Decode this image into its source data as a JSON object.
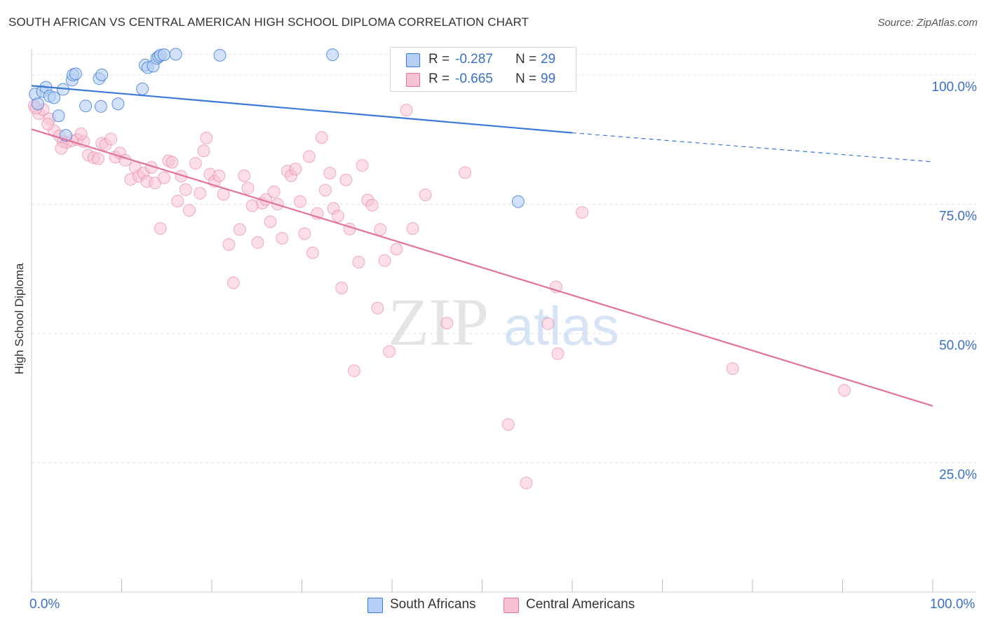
{
  "title": "SOUTH AFRICAN VS CENTRAL AMERICAN HIGH SCHOOL DIPLOMA CORRELATION CHART",
  "source": "Source: ZipAtlas.com",
  "watermark": {
    "zip": "ZIP",
    "atlas": "atlas"
  },
  "legend": {
    "series1": {
      "r_label": "R = ",
      "r_value": "-0.287",
      "n_label": "N = ",
      "n_value": "29"
    },
    "series2": {
      "r_label": "R = ",
      "r_value": "-0.665",
      "n_label": "N = ",
      "n_value": "99"
    }
  },
  "bottom_legend": {
    "series1": "South Africans",
    "series2": "Central Americans"
  },
  "chart_data": {
    "type": "scatter",
    "title": "SOUTH AFRICAN VS CENTRAL AMERICAN HIGH SCHOOL DIPLOMA CORRELATION CHART",
    "xlabel": "",
    "ylabel": "High School Diploma",
    "xlim": [
      0,
      100
    ],
    "ylim": [
      0,
      105
    ],
    "x_tick_labels": [
      "0.0%",
      "100.0%"
    ],
    "y_ticks": [
      25,
      50,
      75,
      100
    ],
    "y_tick_labels": [
      "25.0%",
      "50.0%",
      "75.0%",
      "100.0%"
    ],
    "grid": true,
    "legend_position": "top-center",
    "colors": {
      "series1": "#3a78d6",
      "series2": "#e0729b",
      "series1_fill": "#b5cff5",
      "series2_fill": "#f7c2d3"
    },
    "series": [
      {
        "name": "South Africans",
        "r": -0.287,
        "n": 29,
        "trend": {
          "x0": 0,
          "y0": 97.9,
          "x1": 60,
          "y1": 88.8,
          "dash_x1": 100,
          "dash_y1": 83.2
        },
        "points": [
          [
            0.4,
            96.3
          ],
          [
            0.7,
            94.4
          ],
          [
            1.2,
            96.8
          ],
          [
            1.6,
            97.6
          ],
          [
            2.0,
            95.9
          ],
          [
            2.5,
            95.6
          ],
          [
            3.0,
            92.1
          ],
          [
            3.8,
            88.3
          ],
          [
            3.5,
            97.2
          ],
          [
            4.5,
            99.0
          ],
          [
            4.6,
            100.0
          ],
          [
            4.9,
            100.2
          ],
          [
            6.0,
            94.0
          ],
          [
            7.5,
            99.3
          ],
          [
            7.8,
            100.0
          ],
          [
            7.7,
            93.9
          ],
          [
            9.6,
            94.4
          ],
          [
            12.3,
            97.3
          ],
          [
            12.6,
            101.9
          ],
          [
            12.9,
            101.4
          ],
          [
            13.5,
            101.7
          ],
          [
            13.9,
            103.2
          ],
          [
            14.1,
            103.5
          ],
          [
            14.3,
            103.8
          ],
          [
            14.7,
            103.9
          ],
          [
            16.0,
            104.0
          ],
          [
            20.9,
            103.8
          ],
          [
            33.4,
            103.9
          ],
          [
            54.0,
            75.5
          ]
        ]
      },
      {
        "name": "Central Americans",
        "r": -0.665,
        "n": 99,
        "trend": {
          "x0": 0,
          "y0": 89.5,
          "x1": 100,
          "y1": 36.0
        },
        "points": [
          [
            0.3,
            94.0
          ],
          [
            0.8,
            92.5
          ],
          [
            1.3,
            93.3
          ],
          [
            2.0,
            91.5
          ],
          [
            2.5,
            89.2
          ],
          [
            3.1,
            88.2
          ],
          [
            3.5,
            87.1
          ],
          [
            3.9,
            86.9
          ],
          [
            4.5,
            87.3
          ],
          [
            5.1,
            87.5
          ],
          [
            5.8,
            87.1
          ],
          [
            6.3,
            84.5
          ],
          [
            6.9,
            84.0
          ],
          [
            7.4,
            83.8
          ],
          [
            7.8,
            86.8
          ],
          [
            8.2,
            86.5
          ],
          [
            8.8,
            87.6
          ],
          [
            9.3,
            84.1
          ],
          [
            9.8,
            84.9
          ],
          [
            10.4,
            83.5
          ],
          [
            11.0,
            79.8
          ],
          [
            11.5,
            82.1
          ],
          [
            11.9,
            80.4
          ],
          [
            12.4,
            81.0
          ],
          [
            12.8,
            79.4
          ],
          [
            13.3,
            82.1
          ],
          [
            13.7,
            79.1
          ],
          [
            14.3,
            70.3
          ],
          [
            14.7,
            80.1
          ],
          [
            15.2,
            83.4
          ],
          [
            15.6,
            83.1
          ],
          [
            16.2,
            75.6
          ],
          [
            16.6,
            80.4
          ],
          [
            17.1,
            77.8
          ],
          [
            17.5,
            73.8
          ],
          [
            18.2,
            82.9
          ],
          [
            18.7,
            77.1
          ],
          [
            19.1,
            85.3
          ],
          [
            19.4,
            87.8
          ],
          [
            19.8,
            80.8
          ],
          [
            20.3,
            79.4
          ],
          [
            20.8,
            80.5
          ],
          [
            21.3,
            76.9
          ],
          [
            21.9,
            67.2
          ],
          [
            22.4,
            59.8
          ],
          [
            23.1,
            70.1
          ],
          [
            23.6,
            80.5
          ],
          [
            24.0,
            78.1
          ],
          [
            24.5,
            74.7
          ],
          [
            25.1,
            67.6
          ],
          [
            25.6,
            75.2
          ],
          [
            26.0,
            75.9
          ],
          [
            26.5,
            71.6
          ],
          [
            26.9,
            77.4
          ],
          [
            27.3,
            75.0
          ],
          [
            27.8,
            68.4
          ],
          [
            28.4,
            81.4
          ],
          [
            28.8,
            80.5
          ],
          [
            29.3,
            81.8
          ],
          [
            29.8,
            75.5
          ],
          [
            30.3,
            69.3
          ],
          [
            30.8,
            84.2
          ],
          [
            31.2,
            65.6
          ],
          [
            31.7,
            73.2
          ],
          [
            32.2,
            87.9
          ],
          [
            32.6,
            77.7
          ],
          [
            33.1,
            81.0
          ],
          [
            33.5,
            74.2
          ],
          [
            34.0,
            72.7
          ],
          [
            34.4,
            58.8
          ],
          [
            34.9,
            79.7
          ],
          [
            35.3,
            70.2
          ],
          [
            35.8,
            42.8
          ],
          [
            36.3,
            63.8
          ],
          [
            36.7,
            82.5
          ],
          [
            37.3,
            75.8
          ],
          [
            37.8,
            74.8
          ],
          [
            38.4,
            54.9
          ],
          [
            38.7,
            70.1
          ],
          [
            39.2,
            64.1
          ],
          [
            39.7,
            46.5
          ],
          [
            40.5,
            66.3
          ],
          [
            41.6,
            93.2
          ],
          [
            42.3,
            70.3
          ],
          [
            43.7,
            76.8
          ],
          [
            46.1,
            52.0
          ],
          [
            48.1,
            81.1
          ],
          [
            52.9,
            32.4
          ],
          [
            54.9,
            21.1
          ],
          [
            57.3,
            51.9
          ],
          [
            58.2,
            59.0
          ],
          [
            58.4,
            46.1
          ],
          [
            61.1,
            73.4
          ],
          [
            77.8,
            43.2
          ],
          [
            90.2,
            39.0
          ],
          [
            0.5,
            93.6
          ],
          [
            1.8,
            90.5
          ],
          [
            3.3,
            85.8
          ],
          [
            5.5,
            88.6
          ]
        ]
      }
    ]
  }
}
